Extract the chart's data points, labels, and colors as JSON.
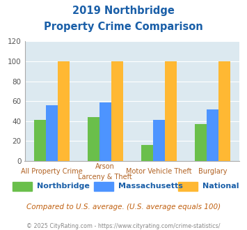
{
  "title_line1": "2019 Northbridge",
  "title_line2": "Property Crime Comparison",
  "cat_labels_line1": [
    "All Property Crime",
    "Arson",
    "Motor Vehicle Theft",
    "Burglary"
  ],
  "cat_labels_line2": [
    "",
    "Larceny & Theft",
    "",
    ""
  ],
  "northbridge": [
    41,
    44,
    16,
    37
  ],
  "massachusetts": [
    56,
    59,
    41,
    52
  ],
  "national": [
    100,
    100,
    100,
    100
  ],
  "bar_colors": {
    "northbridge": "#6abf4b",
    "massachusetts": "#4d94ff",
    "national": "#ffb833"
  },
  "ylim": [
    0,
    120
  ],
  "yticks": [
    0,
    20,
    40,
    60,
    80,
    100,
    120
  ],
  "bg_color": "#dce9f0",
  "title_color": "#1a5fa8",
  "xtick_color": "#b06020",
  "subtitle_note": "Compared to U.S. average. (U.S. average equals 100)",
  "footer": "© 2025 CityRating.com - https://www.cityrating.com/crime-statistics/",
  "legend_labels": [
    "Northbridge",
    "Massachusetts",
    "National"
  ]
}
